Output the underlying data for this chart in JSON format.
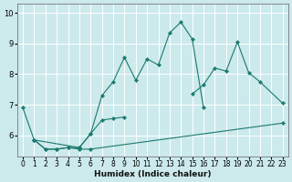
{
  "xlabel": "Humidex (Indice chaleur)",
  "xlim": [
    -0.5,
    23.5
  ],
  "ylim": [
    5.3,
    10.3
  ],
  "bg_color": "#cce9ec",
  "grid_color": "#ffffff",
  "line_color": "#1a7a6e",
  "lines": [
    {
      "x": [
        1,
        2,
        3,
        4,
        5,
        6,
        23
      ],
      "y": [
        5.85,
        5.55,
        5.55,
        5.6,
        5.55,
        5.55,
        6.4
      ]
    },
    {
      "x": [
        1,
        2,
        3,
        4,
        5,
        6,
        7,
        8,
        9
      ],
      "y": [
        5.85,
        5.55,
        5.55,
        5.6,
        5.6,
        6.05,
        6.5,
        6.55,
        6.6
      ]
    },
    {
      "x": [
        0,
        1,
        5,
        6,
        7,
        8,
        9,
        10,
        11,
        12,
        13,
        14,
        15,
        16
      ],
      "y": [
        6.9,
        5.85,
        5.6,
        6.05,
        7.3,
        7.75,
        8.55,
        7.8,
        8.5,
        8.3,
        9.35,
        9.7,
        9.15,
        6.9
      ]
    },
    {
      "x": [
        15,
        16,
        17,
        18,
        19,
        20,
        21,
        23
      ],
      "y": [
        7.35,
        7.65,
        8.2,
        8.1,
        9.05,
        8.05,
        7.75,
        7.05
      ]
    }
  ],
  "xticks": [
    0,
    1,
    2,
    3,
    4,
    5,
    6,
    7,
    8,
    9,
    10,
    11,
    12,
    13,
    14,
    15,
    16,
    17,
    18,
    19,
    20,
    21,
    22,
    23
  ],
  "yticks": [
    6,
    7,
    8,
    9,
    10
  ]
}
